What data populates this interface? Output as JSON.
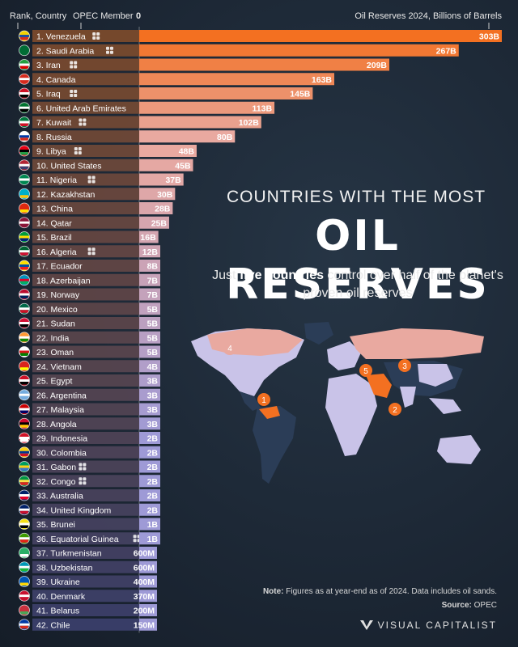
{
  "header": {
    "rank_country": "Rank, Country",
    "opec_member": "OPEC Member",
    "zero": "0",
    "unit_label": "Oil Reserves 2024, Billions of Barrels"
  },
  "title_top": "COUNTRIES WITH THE MOST",
  "title_main": "OIL RESERVES",
  "subtitle": {
    "pre": "Just ",
    "bold": "five countries",
    "post": " control over half of the planet's proven oil reserves"
  },
  "note_label": "Note:",
  "note_text": " Figures as at year-end as of 2024. Data includes oil sands.",
  "source_label": "Source:",
  "source_text": " OPEC",
  "brand": "VISUAL CAPITALIST",
  "map_markers": [
    "1",
    "2",
    "3",
    "4",
    "5"
  ],
  "colors": {
    "accent_orange": "#f37021",
    "bar_low": "#9e9ad6",
    "bar_mid": "#e9a9a0",
    "label_fill_top": "#7a4a2c",
    "label_fill_bottom": "#3a3f6a"
  },
  "chart_data": {
    "type": "bar",
    "orientation": "horizontal",
    "xlabel": "Oil Reserves 2024, Billions of Barrels",
    "categories": [
      "1. Venezuela",
      "2. Saudi Arabia",
      "3. Iran",
      "4. Canada",
      "5. Iraq",
      "6. United Arab Emirates",
      "7. Kuwait",
      "8. Russia",
      "9. Libya",
      "10. United States",
      "11. Nigeria",
      "12. Kazakhstan",
      "13. China",
      "14. Qatar",
      "15. Brazil",
      "16. Algeria",
      "17. Ecuador",
      "18. Azerbaijan",
      "19. Norway",
      "20. Mexico",
      "21. Sudan",
      "22. India",
      "23. Oman",
      "24. Vietnam",
      "25. Egypt",
      "26. Argentina",
      "27. Malaysia",
      "28. Angola",
      "29. Indonesia",
      "30. Colombia",
      "31. Gabon",
      "32. Congo",
      "33. Australia",
      "34. United Kingdom",
      "35. Brunei",
      "36. Equatorial Guinea",
      "37. Turkmenistan",
      "38. Uzbekistan",
      "39. Ukraine",
      "40. Denmark",
      "41. Belarus",
      "42. Chile"
    ],
    "values": [
      303,
      267,
      209,
      163,
      145,
      113,
      102,
      80,
      48,
      45,
      37,
      30,
      28,
      25,
      16,
      12,
      8,
      7,
      7,
      5,
      5,
      5,
      5,
      4,
      3,
      3,
      3,
      3,
      2,
      2,
      2,
      2,
      2,
      2,
      1,
      1,
      0.6,
      0.6,
      0.4,
      0.37,
      0.2,
      0.15
    ],
    "value_labels": [
      "303B",
      "267B",
      "209B",
      "163B",
      "145B",
      "113B",
      "102B",
      "80B",
      "48B",
      "45B",
      "37B",
      "30B",
      "28B",
      "25B",
      "16B",
      "12B",
      "8B",
      "7B",
      "7B",
      "5B",
      "5B",
      "5B",
      "5B",
      "4B",
      "3B",
      "3B",
      "3B",
      "3B",
      "2B",
      "2B",
      "2B",
      "2B",
      "2B",
      "2B",
      "1B",
      "1B",
      "600M",
      "600M",
      "400M",
      "370M",
      "200M",
      "150M"
    ],
    "opec_member": [
      true,
      true,
      true,
      false,
      true,
      true,
      true,
      false,
      true,
      false,
      true,
      false,
      false,
      false,
      false,
      true,
      false,
      false,
      false,
      false,
      false,
      false,
      false,
      false,
      false,
      false,
      false,
      false,
      false,
      false,
      true,
      true,
      false,
      false,
      false,
      true,
      false,
      false,
      false,
      false,
      false,
      false
    ],
    "flag_colors": [
      [
        "#f4d000",
        "#1f4fa0",
        "#d52b1e"
      ],
      [
        "#006c35",
        "#006c35",
        "#006c35"
      ],
      [
        "#239f40",
        "#ffffff",
        "#da0000"
      ],
      [
        "#d52b1e",
        "#ffffff",
        "#d52b1e"
      ],
      [
        "#ce1126",
        "#ffffff",
        "#000000"
      ],
      [
        "#00732f",
        "#ffffff",
        "#000000"
      ],
      [
        "#007a3d",
        "#ffffff",
        "#ce1126"
      ],
      [
        "#ffffff",
        "#0039a6",
        "#d52b1e"
      ],
      [
        "#e70013",
        "#000000",
        "#239e46"
      ],
      [
        "#b22234",
        "#ffffff",
        "#3c3b6e"
      ],
      [
        "#008751",
        "#ffffff",
        "#008751"
      ],
      [
        "#00afca",
        "#00afca",
        "#fec50c"
      ],
      [
        "#de2910",
        "#de2910",
        "#ffde00"
      ],
      [
        "#8a1538",
        "#ffffff",
        "#8a1538"
      ],
      [
        "#009c3b",
        "#ffdf00",
        "#002776"
      ],
      [
        "#006233",
        "#ffffff",
        "#d21034"
      ],
      [
        "#ffdd00",
        "#034ea2",
        "#ed1c24"
      ],
      [
        "#0092bc",
        "#e4002b",
        "#00af66"
      ],
      [
        "#ba0c2f",
        "#ffffff",
        "#00205b"
      ],
      [
        "#006847",
        "#ffffff",
        "#ce1126"
      ],
      [
        "#d21034",
        "#ffffff",
        "#000000"
      ],
      [
        "#ff9933",
        "#ffffff",
        "#138808"
      ],
      [
        "#ffffff",
        "#db161b",
        "#008000"
      ],
      [
        "#da251d",
        "#da251d",
        "#ffff00"
      ],
      [
        "#ce1126",
        "#ffffff",
        "#000000"
      ],
      [
        "#74acdf",
        "#ffffff",
        "#74acdf"
      ],
      [
        "#cc0001",
        "#ffffff",
        "#010066"
      ],
      [
        "#cc092f",
        "#000000",
        "#ffcb00"
      ],
      [
        "#ce1126",
        "#ffffff",
        "#ffffff"
      ],
      [
        "#fcd116",
        "#003893",
        "#ce1126"
      ],
      [
        "#009e60",
        "#fcd116",
        "#3a75c4"
      ],
      [
        "#009543",
        "#fbde4a",
        "#dc241f"
      ],
      [
        "#012169",
        "#ffffff",
        "#e4002b"
      ],
      [
        "#012169",
        "#ffffff",
        "#c8102e"
      ],
      [
        "#f7e017",
        "#ffffff",
        "#000000"
      ],
      [
        "#3e9a00",
        "#ffffff",
        "#e32118"
      ],
      [
        "#28ae66",
        "#28ae66",
        "#ffffff"
      ],
      [
        "#0099b5",
        "#ffffff",
        "#1eb53a"
      ],
      [
        "#0057b7",
        "#0057b7",
        "#ffd700"
      ],
      [
        "#c8102e",
        "#ffffff",
        "#c8102e"
      ],
      [
        "#c8313e",
        "#c8313e",
        "#4aa657"
      ],
      [
        "#0039a6",
        "#ffffff",
        "#d52b1e"
      ]
    ],
    "xlim": [
      0,
      303
    ]
  }
}
